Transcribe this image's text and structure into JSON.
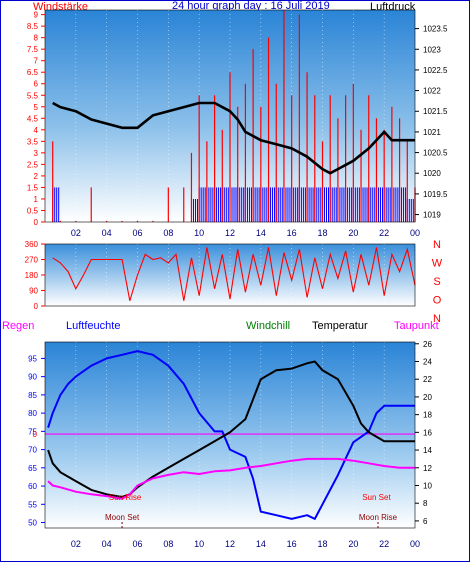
{
  "header": {
    "left_label": "Windstärke",
    "title": "24 hour graph day : 16 Juli 2019",
    "right_label": "Luftdruck"
  },
  "lower_header": {
    "regen": "Regen",
    "luftfeuchte": "Luftfeuchte",
    "windchill": "Windchill",
    "temperatur": "Temperatur",
    "taupunkt": "Taupunkt"
  },
  "colors": {
    "red": "#ff0000",
    "blue": "#0000ff",
    "black": "#000000",
    "magenta": "#ff00ff",
    "green": "#008000",
    "dark_red": "#8b0000",
    "navy": "#000080"
  },
  "chart_data": [
    {
      "type": "line",
      "panel": "wind_pressure",
      "title": "24 hour graph day : 16 Juli 2019",
      "x_ticks": [
        "02",
        "04",
        "06",
        "08",
        "10",
        "12",
        "14",
        "16",
        "18",
        "20",
        "22",
        "00"
      ],
      "left_axis": {
        "label": "Windstärke",
        "ticks": [
          "0",
          "0.5",
          "1",
          "1.5",
          "2",
          "2.5",
          "3",
          "3.5",
          "4",
          "4.5",
          "5",
          "5.5",
          "6",
          "6.5",
          "7",
          "7.5",
          "8",
          "8.5",
          "9"
        ],
        "range": [
          0,
          9.2
        ]
      },
      "right_axis": {
        "label": "Luftdruck",
        "ticks": [
          "1019",
          "1019.5",
          "1020",
          "1020.5",
          "1021",
          "1021.5",
          "1022",
          "1022.5",
          "1023",
          "1023.5"
        ],
        "range": [
          1018.82,
          1023.95
        ]
      },
      "series": [
        {
          "name": "",
          "color": "#000000",
          "axis": "right",
          "x": [
            0.5,
            1,
            2,
            3,
            4,
            5,
            6,
            7,
            8,
            9,
            10,
            11,
            12,
            12.5,
            13,
            14,
            15,
            16,
            17,
            18,
            18.5,
            19,
            20,
            21,
            21.5,
            22,
            22.5,
            23,
            24
          ],
          "y": [
            1021.7,
            1021.6,
            1021.5,
            1021.3,
            1021.2,
            1021.1,
            1021.1,
            1021.4,
            1021.5,
            1021.6,
            1021.7,
            1021.7,
            1021.5,
            1021.3,
            1021.0,
            1020.8,
            1020.7,
            1020.6,
            1020.4,
            1020.1,
            1020.0,
            1020.1,
            1020.3,
            1020.6,
            1020.8,
            1021.0,
            1020.8,
            1020.8,
            1020.8
          ]
        },
        {
          "name": "",
          "color": "#ff0000",
          "axis": "left",
          "kind": "gust_spikes",
          "x": [
            0.5,
            1,
            2,
            3,
            4,
            5,
            6,
            7,
            8,
            9,
            9.5,
            10,
            10.5,
            11,
            11.5,
            12,
            12.5,
            13,
            13.5,
            14,
            14.5,
            15,
            15.5,
            16,
            16.5,
            17,
            17.5,
            18,
            18.5,
            19,
            19.5,
            20,
            20.5,
            21,
            21.5,
            22,
            22.5,
            23,
            23.5,
            24
          ],
          "y": [
            3.5,
            0,
            0,
            1.5,
            0,
            0,
            0,
            0,
            1.5,
            1.5,
            3,
            5.5,
            3.5,
            5.5,
            4,
            6.5,
            5,
            6,
            7.5,
            5,
            8,
            6,
            9.2,
            5.5,
            9,
            6.5,
            5.5,
            3.5,
            5.5,
            4.5,
            5.5,
            6,
            4,
            5.5,
            4.5,
            4,
            5,
            4.5,
            3.5,
            1.5
          ]
        },
        {
          "name": "",
          "color": "#0000ff",
          "axis": "left",
          "kind": "wind_bars",
          "x": [
            0.5,
            1,
            2,
            3,
            4,
            5,
            6,
            7,
            8,
            9,
            9.5,
            10,
            10.5,
            11,
            11.5,
            12,
            12.5,
            13,
            13.5,
            14,
            14.5,
            15,
            15.5,
            16,
            16.5,
            17,
            17.5,
            18,
            18.5,
            19,
            19.5,
            20,
            20.5,
            21,
            21.5,
            22,
            22.5,
            23,
            23.5,
            24
          ],
          "y": [
            1.5,
            0,
            0,
            0,
            0,
            0,
            0,
            0,
            0,
            0,
            1,
            1.5,
            1.5,
            1.5,
            1.5,
            1.5,
            1.5,
            1.5,
            1.5,
            1.5,
            1.5,
            1.5,
            1.5,
            1.5,
            1.5,
            1.5,
            1.5,
            1.5,
            1.5,
            1.5,
            1.5,
            1.5,
            1.5,
            1.5,
            1.5,
            1.5,
            1.5,
            1.5,
            1,
            0
          ]
        }
      ]
    },
    {
      "type": "line",
      "panel": "wind_direction",
      "x_ticks": [
        "02",
        "04",
        "06",
        "08",
        "10",
        "12",
        "14",
        "16",
        "18",
        "20",
        "22",
        "00"
      ],
      "left_axis": {
        "ticks": [
          "0",
          "90",
          "180",
          "270",
          "360"
        ],
        "range": [
          0,
          360
        ]
      },
      "right_labels": [
        "N",
        "W",
        "S",
        "O",
        "N"
      ],
      "series": [
        {
          "name": "",
          "color": "#ff0000",
          "x": [
            0.5,
            1,
            1.5,
            2,
            2.5,
            3,
            4,
            5,
            5.5,
            6,
            6.5,
            7,
            7.5,
            8,
            8.5,
            9,
            9.5,
            10,
            10.5,
            11,
            11.5,
            12,
            12.5,
            13,
            13.5,
            14,
            14.5,
            15,
            15.5,
            16,
            16.5,
            17,
            17.5,
            18,
            18.5,
            19,
            19.5,
            20,
            20.5,
            21,
            21.5,
            22,
            22.5,
            23,
            23.5,
            24
          ],
          "y": [
            280,
            250,
            200,
            100,
            180,
            270,
            270,
            270,
            30,
            180,
            300,
            270,
            280,
            250,
            300,
            30,
            280,
            60,
            340,
            100,
            300,
            40,
            330,
            80,
            300,
            120,
            340,
            60,
            310,
            150,
            330,
            50,
            280,
            100,
            300,
            160,
            320,
            80,
            300,
            120,
            340,
            60,
            300,
            200,
            330,
            120
          ]
        }
      ]
    },
    {
      "type": "line",
      "panel": "temperature_humidity",
      "x_ticks": [
        "02",
        "04",
        "06",
        "08",
        "10",
        "12",
        "14",
        "16",
        "18",
        "20",
        "22",
        "00"
      ],
      "left_axis": {
        "label": "Luftfeuchte",
        "ticks": [
          "50",
          "55",
          "60",
          "65",
          "70",
          "75",
          "80",
          "85",
          "90",
          "95"
        ],
        "range": [
          48.5,
          99.5
        ]
      },
      "right_axis": {
        "label": "Temperatur",
        "ticks": [
          "6",
          "8",
          "10",
          "12",
          "14",
          "16",
          "18",
          "20",
          "22",
          "24",
          "26"
        ],
        "range": [
          5.2,
          26.2
        ]
      },
      "regen_marker": {
        "label": "Regen",
        "value": "0"
      },
      "annotations": [
        {
          "text": "Sun Rise",
          "x": 5.2
        },
        {
          "text": "Moon Set",
          "x": 5.0
        },
        {
          "text": "Sun Set",
          "x": 21.5
        },
        {
          "text": "Moon Rise",
          "x": 21.6
        }
      ],
      "series": [
        {
          "name": "Luftfeuchte",
          "color": "#0000ff",
          "axis": "left",
          "x": [
            0.2,
            0.5,
            1,
            1.5,
            2,
            3,
            4,
            5,
            6,
            7,
            8,
            9,
            10,
            11,
            11.5,
            12,
            13,
            13.5,
            14,
            15,
            16,
            17,
            17.5,
            18,
            19,
            20,
            21,
            21.5,
            22,
            23,
            24
          ],
          "y": [
            76,
            80,
            85,
            88,
            90,
            93,
            95,
            96,
            97,
            96,
            93,
            88,
            80,
            75,
            75,
            70,
            68,
            62,
            53,
            52,
            51,
            52,
            51,
            55,
            63,
            72,
            75,
            80,
            82,
            82,
            82
          ]
        },
        {
          "name": "Temperatur",
          "color": "#000000",
          "axis": "right",
          "x": [
            0.2,
            0.5,
            1,
            2,
            3,
            4,
            5,
            5.5,
            6,
            7,
            8,
            9,
            10,
            11,
            12,
            13,
            14,
            14.5,
            15,
            16,
            17,
            17.5,
            18,
            19,
            20,
            20.5,
            21,
            22,
            23,
            24
          ],
          "y": [
            14,
            12.5,
            11.5,
            10.5,
            9.5,
            9,
            8.7,
            9,
            9.8,
            11,
            12,
            13,
            14,
            15,
            16,
            17.5,
            22,
            22.5,
            23,
            23.2,
            23.8,
            24,
            23,
            22,
            19,
            17,
            16,
            15,
            15,
            15
          ]
        },
        {
          "name": "Taupunkt",
          "color": "#ff00ff",
          "axis": "right",
          "x": [
            0.2,
            0.5,
            1,
            2,
            3,
            4,
            5,
            5.5,
            6,
            7,
            8,
            9,
            10,
            11,
            12,
            13,
            14,
            15,
            16,
            17,
            18,
            19,
            20,
            21,
            22,
            23,
            24
          ],
          "y": [
            10.5,
            10,
            9.8,
            9.3,
            9,
            8.8,
            8.5,
            9,
            10,
            10.8,
            11.2,
            11.5,
            11.3,
            11.6,
            11.7,
            12,
            12.2,
            12.5,
            12.8,
            13,
            13,
            13,
            12.8,
            12.5,
            12.2,
            12,
            12
          ]
        }
      ]
    }
  ]
}
